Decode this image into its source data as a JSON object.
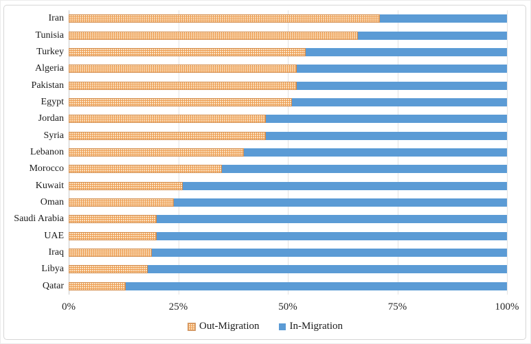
{
  "chart_data": {
    "type": "bar",
    "orientation": "horizontal",
    "stacked": true,
    "title": "",
    "xlabel": "",
    "ylabel": "",
    "unit": "%",
    "xlim": [
      0,
      100
    ],
    "grid": true,
    "legend_position": "bottom",
    "categories": [
      "Iran",
      "Tunisia",
      "Turkey",
      "Algeria",
      "Pakistan",
      "Egypt",
      "Jordan",
      "Syria",
      "Lebanon",
      "Morocco",
      "Kuwait",
      "Oman",
      "Saudi Arabia",
      "UAE",
      "Iraq",
      "Libya",
      "Qatar"
    ],
    "series": [
      {
        "name": "Out-Migration",
        "color": "#EE9E53",
        "pattern": "dotted",
        "values": [
          71,
          66,
          54,
          52,
          52,
          51,
          45,
          45,
          40,
          35,
          26,
          24,
          20,
          20,
          19,
          18,
          13
        ]
      },
      {
        "name": "In-Migration",
        "color": "#5B9BD5",
        "pattern": "solid",
        "values": [
          29,
          34,
          46,
          48,
          48,
          49,
          55,
          55,
          60,
          65,
          74,
          76,
          80,
          80,
          81,
          82,
          87
        ]
      }
    ],
    "x_ticks": [
      "0%",
      "25%",
      "50%",
      "75%",
      "100%"
    ]
  },
  "layout_colors": {
    "bar_out_fill": "#EE9E53",
    "bar_out_dot": "#FBE9CE",
    "bar_out_border": "#D28A49",
    "bar_in_fill": "#5B9BD5",
    "gridline": "#E3E3E3",
    "frame_border": "#D6D6D6",
    "text": "#1F1F1F"
  }
}
